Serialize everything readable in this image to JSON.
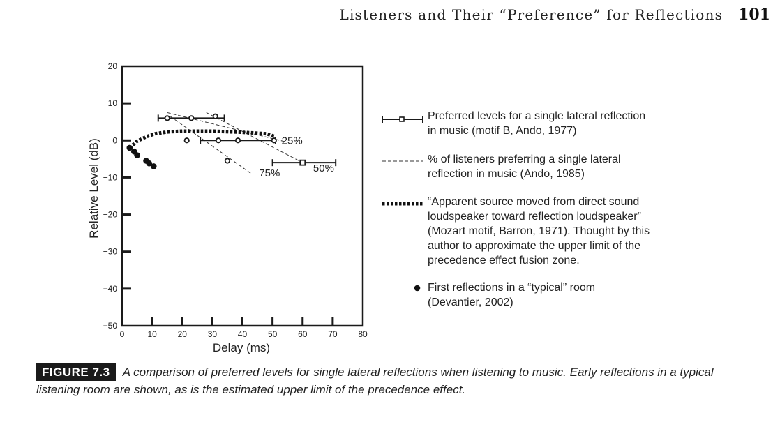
{
  "header": {
    "running_title": "Listeners and Their “Preference” for Reflections",
    "page_number": "101"
  },
  "chart_data": {
    "type": "scatter",
    "xlabel": "Delay (ms)",
    "ylabel": "Relative Level (dB)",
    "xlim": [
      0,
      80
    ],
    "ylim": [
      -50,
      20
    ],
    "xticks": [
      0,
      10,
      20,
      30,
      40,
      50,
      60,
      70,
      80
    ],
    "yticks": [
      20,
      10,
      0,
      -10,
      -20,
      -30,
      -40,
      -50
    ],
    "ytick_labels": [
      "20",
      "10",
      "0",
      "−10",
      "−20",
      "−30",
      "−40",
      "−50"
    ],
    "grid": false,
    "legend_position": "right",
    "series": [
      {
        "name": "Preferred levels for a single lateral reflection in music (motif B, Ando, 1977)",
        "style": "errorbar",
        "points": [
          {
            "x": 24,
            "y": 6,
            "xmin": 12,
            "xmax": 34
          },
          {
            "x": 36,
            "y": 0,
            "xmin": 26,
            "xmax": 51
          },
          {
            "x": 60,
            "y": -6,
            "xmin": 50,
            "xmax": 71
          }
        ]
      },
      {
        "name": "% of listeners preferring a single lateral reflection in music (Ando, 1985)",
        "style": "dashed",
        "lines": [
          {
            "label": "25%",
            "points": [
              [
                15,
                7.5
              ],
              [
                55,
                -0.5
              ]
            ]
          },
          {
            "label": "50%",
            "points": [
              [
                28,
                7.5
              ],
              [
                60,
                -6
              ]
            ]
          },
          {
            "label": "75%",
            "points": [
              [
                16,
                6.5
              ],
              [
                43,
                -9
              ]
            ]
          }
        ],
        "markers": [
          [
            15,
            6
          ],
          [
            23,
            6
          ],
          [
            31,
            6.5
          ],
          [
            21.5,
            0
          ],
          [
            32,
            0
          ],
          [
            38.5,
            0
          ],
          [
            50.5,
            0
          ],
          [
            35,
            -5.5
          ]
        ]
      },
      {
        "name": "“Apparent source moved from direct sound loudspeaker toward reflection loudspeaker” (Mozart motif, Barron, 1971). Thought by this author to approximate the upper limit of the precedence effect fusion zone.",
        "style": "dotted-curve",
        "points": [
          [
            2.5,
            -2
          ],
          [
            5,
            -0.2
          ],
          [
            8,
            1
          ],
          [
            11,
            1.8
          ],
          [
            15,
            2.3
          ],
          [
            20,
            2.5
          ],
          [
            30,
            2.5
          ],
          [
            40,
            2.2
          ],
          [
            48,
            1.8
          ],
          [
            51,
            1
          ]
        ]
      },
      {
        "name": "First reflections in a “typical” room (Devantier, 2002)",
        "style": "filled-dots",
        "points": [
          [
            2.5,
            -2
          ],
          [
            4,
            -3
          ],
          [
            5,
            -4
          ],
          [
            8,
            -5.5
          ],
          [
            9,
            -6.2
          ],
          [
            10.5,
            -7
          ]
        ]
      }
    ],
    "annotations": [
      {
        "text": "25%",
        "x": 56.5,
        "y": 0
      },
      {
        "text": "50%",
        "x": 67,
        "y": -7.5
      },
      {
        "text": "75%",
        "x": 49,
        "y": -8.8
      }
    ]
  },
  "legend": [
    {
      "symbol": "errorbar",
      "text": "Preferred levels for a single lateral reflection\nin music (motif B, Ando, 1977)"
    },
    {
      "symbol": "dashed",
      "text": "% of listeners preferring a single lateral\nreflection in music (Ando, 1985)"
    },
    {
      "symbol": "dotted",
      "text": "“Apparent source moved from direct sound\nloudspeaker toward reflection loudspeaker”\n(Mozart motif, Barron, 1971). Thought by this\nauthor to approximate the upper limit of the\nprecedence effect fusion zone."
    },
    {
      "symbol": "dot",
      "text": "First reflections in a “typical” room\n(Devantier, 2002)"
    }
  ],
  "caption": {
    "label": "FIGURE 7.3",
    "text": "A comparison of preferred levels for single lateral reflections when listening to music. Early reflections in a typical listening room are shown, as is the estimated upper limit of the precedence effect."
  }
}
